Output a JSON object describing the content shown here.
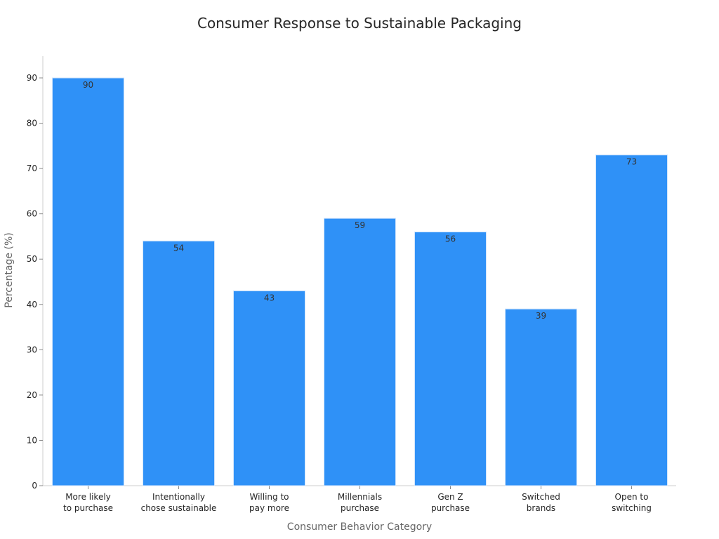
{
  "chart_data": {
    "type": "bar",
    "title": "Consumer Response to Sustainable Packaging",
    "xlabel": "Consumer Behavior Category",
    "ylabel": "Percentage (%)",
    "categories": [
      [
        "More likely",
        "to purchase"
      ],
      [
        "Intentionally",
        "chose sustainable"
      ],
      [
        "Willing to",
        "pay more"
      ],
      [
        "Millennials",
        "purchase"
      ],
      [
        "Gen Z",
        "purchase"
      ],
      [
        "Switched",
        "brands"
      ],
      [
        "Open to",
        "switching"
      ]
    ],
    "values": [
      90,
      54,
      43,
      59,
      56,
      39,
      73
    ],
    "ylim": [
      0,
      95
    ],
    "yticks": [
      0,
      10,
      20,
      30,
      40,
      50,
      60,
      70,
      80,
      90
    ],
    "data_labels": true,
    "grid": false,
    "legend": "none",
    "colors": {
      "bar": "#2f91f7",
      "bar_edge": "#d0e4fb",
      "axis": "#cccccc",
      "tick": "#888888",
      "text": "#262626",
      "axis_title": "#666666"
    }
  }
}
